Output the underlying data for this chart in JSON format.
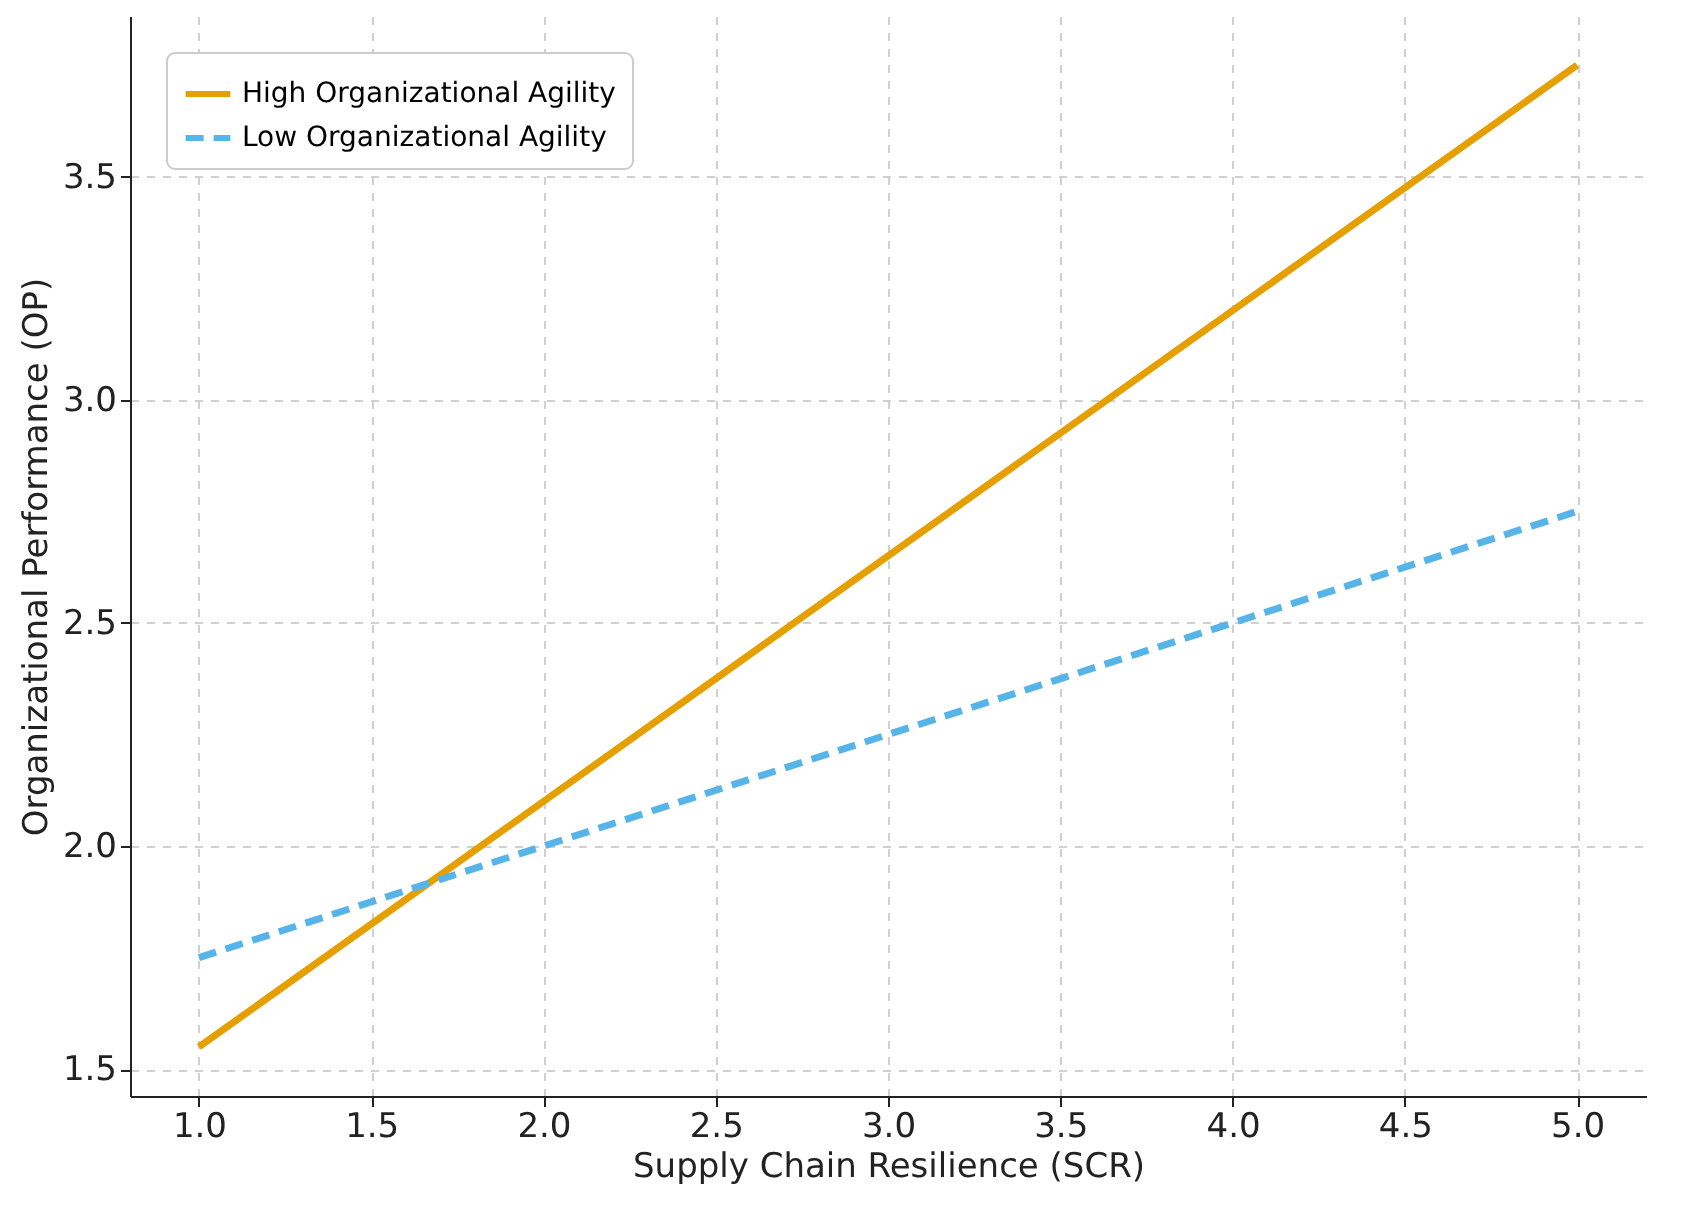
{
  "chart_data": {
    "type": "line",
    "xlabel": "Supply Chain Resilience (SCR)",
    "ylabel": "Organizational Performance (OP)",
    "x": [
      1.0,
      5.0
    ],
    "series": [
      {
        "name": "High Organizational Agility",
        "color": "#e69f00",
        "values": [
          1.55,
          3.75
        ],
        "line_style": "solid"
      },
      {
        "name": "Low Organizational Agility",
        "color": "#56b4e9",
        "values": [
          1.75,
          2.75
        ],
        "line_style": "dashed"
      }
    ],
    "xlim": [
      0.8,
      5.2
    ],
    "xticks": [
      {
        "value": 1,
        "label": "1.0"
      },
      1.5,
      {
        "value": 2,
        "label": "2.0"
      },
      2.5,
      {
        "value": 3,
        "label": "3.0"
      },
      3.5,
      {
        "value": 4,
        "label": "4.0"
      },
      4.5,
      {
        "value": 5,
        "label": "5.0"
      }
    ],
    "ylim": [
      1.44,
      3.86
    ],
    "yticks": [
      1.5,
      {
        "value": 2,
        "label": "2.0"
      },
      2.5,
      {
        "value": 3,
        "label": "3.0"
      },
      3.5
    ],
    "grid": true,
    "legend": "top left"
  }
}
